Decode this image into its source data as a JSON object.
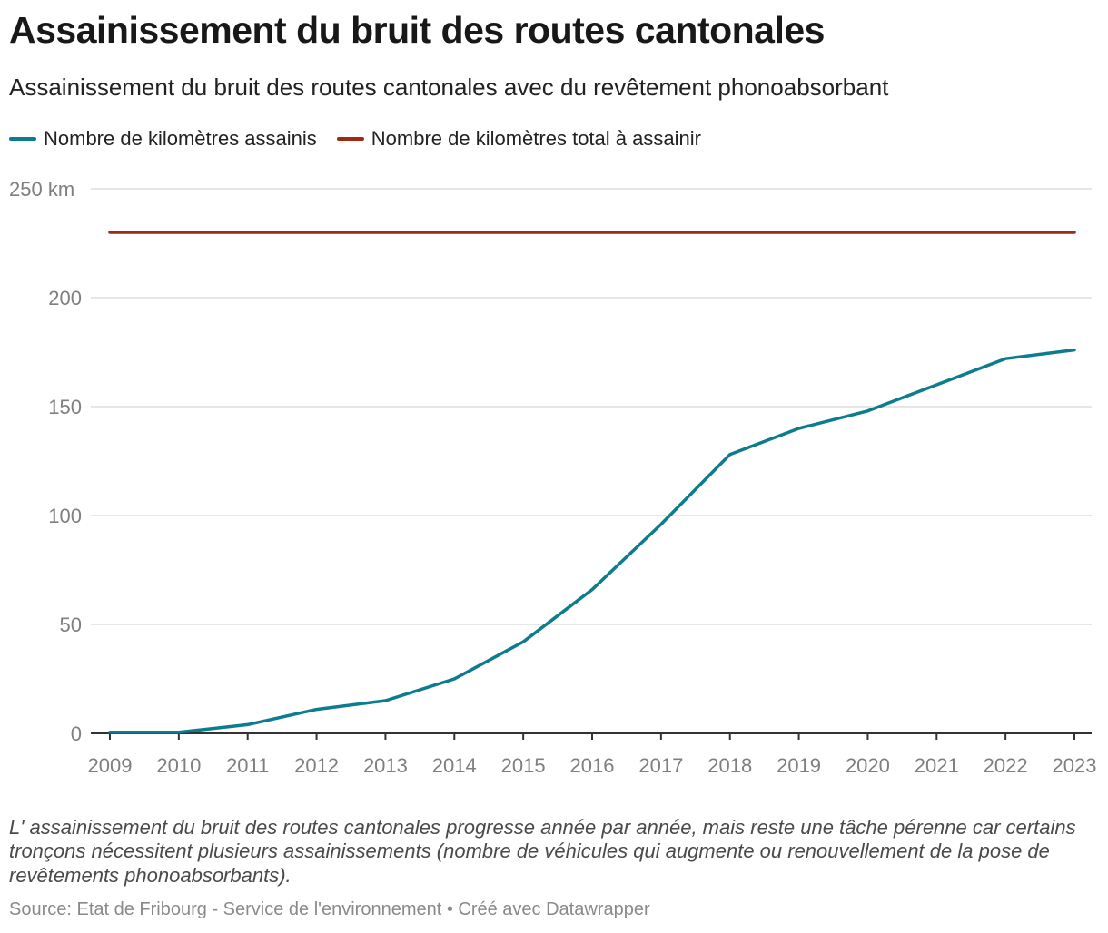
{
  "chart_data": {
    "type": "line",
    "title": "Assainissement du bruit des routes cantonales",
    "subtitle": "Assainissement du bruit des routes cantonales avec du revêtement phonoabsorbant",
    "x": [
      "2009",
      "2010",
      "2011",
      "2012",
      "2013",
      "2014",
      "2015",
      "2016",
      "2017",
      "2018",
      "2019",
      "2020",
      "2021",
      "2022",
      "2023"
    ],
    "series": [
      {
        "name": "Nombre de kilomètres assainis",
        "color": "#0d7c8e",
        "values": [
          0.5,
          0.5,
          4,
          11,
          15,
          25,
          42,
          66,
          96,
          128,
          140,
          148,
          160,
          172,
          176
        ]
      },
      {
        "name": "Nombre de kilomètres total à assainir",
        "color": "#9e2a13",
        "values": [
          230,
          230,
          230,
          230,
          230,
          230,
          230,
          230,
          230,
          230,
          230,
          230,
          230,
          230,
          230
        ]
      }
    ],
    "y_ticks": [
      0,
      50,
      100,
      150,
      200,
      250
    ],
    "y_tick_labels": [
      "0",
      "50",
      "100",
      "150",
      "200",
      "250 km"
    ],
    "ylim": [
      0,
      250
    ],
    "grid": true,
    "legend_position": "top-left"
  },
  "note": "L' assainissement du bruit des routes cantonales progresse année par année, mais reste une tâche pérenne car certains tronçons nécessitent plusieurs assainissements (nombre de véhicules qui augmente ou renouvellement de la pose de revêtements phonoabsorbants).",
  "source": "Source: Etat de Fribourg - Service de l'environnement • Créé avec Datawrapper",
  "colors": {
    "grid": "#dddddd",
    "axis": "#333333",
    "tick_text": "#7f7f7f"
  }
}
